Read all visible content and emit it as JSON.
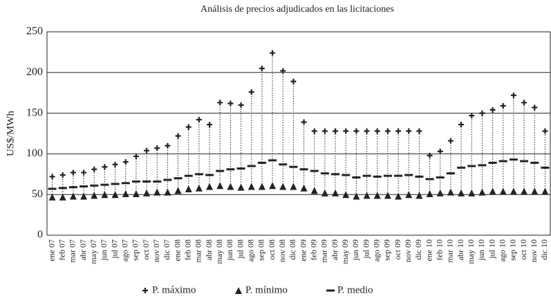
{
  "chart_data": {
    "type": "hilo",
    "title": "Análisis de precios adjudicados en las licitaciones",
    "y_label": "US$/MWh",
    "categories": [
      "ene 07",
      "feb 07",
      "mar 07",
      "abr 07",
      "may 07",
      "jun 07",
      "jul 07",
      "ago 07",
      "sep 07",
      "oct 07",
      "nov 07",
      "dic 07",
      "ene 08",
      "feb 08",
      "mar 08",
      "abr 08",
      "may 08",
      "jun 08",
      "jul 08",
      "ago 08",
      "sep 08",
      "oct 08",
      "nov 08",
      "dic 08",
      "ene 09",
      "feb 09",
      "mar 09",
      "abr 09",
      "may 09",
      "jun 09",
      "jul 09",
      "ago 09",
      "sep 09",
      "oct 09",
      "nov 09",
      "dic 09",
      "ene 10",
      "feb 10",
      "mar 10",
      "abr 10",
      "may 10",
      "jun 10",
      "jul 10",
      "ago 10",
      "sep 10",
      "oct 10",
      "nov 10",
      "dic 10"
    ],
    "series": [
      {
        "name": "P. máximo",
        "color": "#222222",
        "marker": "plus",
        "values": [
          72,
          74,
          77,
          77,
          81,
          84,
          87,
          90,
          97,
          104,
          107,
          110,
          122,
          133,
          142,
          136,
          163,
          162,
          160,
          176,
          205,
          224,
          202,
          189,
          139,
          128,
          128,
          128,
          128,
          128,
          128,
          128,
          128,
          128,
          128,
          128,
          98,
          103,
          116,
          136,
          147,
          150,
          154,
          159,
          172,
          163,
          157,
          128
        ]
      },
      {
        "name": "P. mínimo",
        "color": "#222222",
        "marker": "triangle",
        "values": [
          47,
          47,
          48,
          48,
          49,
          50,
          50,
          51,
          51,
          52,
          53,
          53,
          55,
          57,
          58,
          60,
          61,
          60,
          59,
          60,
          60,
          61,
          60,
          60,
          58,
          55,
          52,
          52,
          50,
          48,
          49,
          49,
          49,
          48,
          50,
          49,
          51,
          52,
          53,
          52,
          52,
          53,
          54,
          54,
          54,
          54,
          54,
          54
        ]
      },
      {
        "name": "P. medio",
        "color": "#222222",
        "marker": "dash",
        "values": [
          57,
          58,
          59,
          60,
          61,
          62,
          63,
          64,
          66,
          66,
          66,
          68,
          70,
          73,
          75,
          74,
          79,
          81,
          82,
          85,
          89,
          92,
          87,
          84,
          81,
          79,
          76,
          75,
          74,
          71,
          73,
          72,
          73,
          73,
          74,
          72,
          69,
          71,
          76,
          83,
          85,
          86,
          89,
          91,
          93,
          91,
          89,
          83
        ]
      }
    ],
    "ylim": [
      0,
      250
    ],
    "yticks": [
      0,
      50,
      100,
      150,
      200,
      250
    ],
    "grid": true
  }
}
